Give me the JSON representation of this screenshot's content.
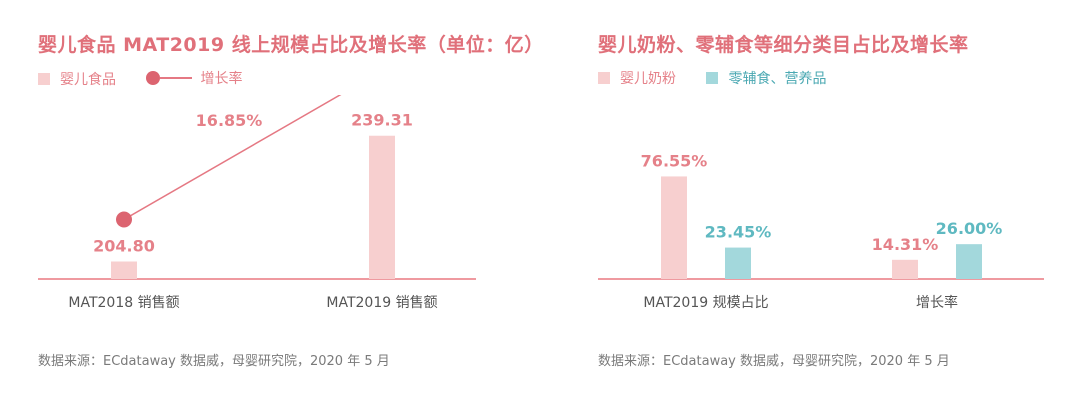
{
  "colors": {
    "title": "#e0707a",
    "pink_bar": "#f7cfcf",
    "teal_bar": "#a3d8dc",
    "pink_label": "#e58189",
    "teal_label": "#5fb9c1",
    "line": "#e57883",
    "dot": "#dc6470",
    "axis": "#ef9aa0",
    "tick": "#555555",
    "source": "#7a7a7a",
    "legend_text_pink": "#e58189",
    "legend_text_teal": "#4aa8b2"
  },
  "left": {
    "title": "婴儿食品 MAT2019 线上规模占比及增长率（单位：亿）",
    "legend": {
      "bar_label": "婴儿食品",
      "line_label": "增长率"
    },
    "source": "数据来源：ECdataway 数据威，母婴研究院，2020 年 5 月"
  },
  "right": {
    "title": "婴儿奶粉、零辅食等细分类目占比及增长率",
    "legend": {
      "series1": "婴儿奶粉",
      "series2": "零辅食、营养品"
    },
    "source": "数据来源：ECdataway 数据威，母婴研究院，2020 年 5 月"
  },
  "chart_data": [
    {
      "type": "bar",
      "title": "婴儿食品 MAT2019 线上规模占比及增长率（单位：亿）",
      "categories": [
        "MAT2018 销售额",
        "MAT2019 销售额"
      ],
      "series": [
        {
          "name": "婴儿食品",
          "values": [
            204.8,
            239.31
          ],
          "labels": [
            "204.80",
            "239.31"
          ]
        }
      ],
      "line_series": {
        "name": "增长率",
        "values": [
          204.8,
          239.31
        ]
      },
      "annotation": "16.85%",
      "ylim": [
        200,
        245
      ],
      "grid": false,
      "legend_position": "top-left"
    },
    {
      "type": "bar",
      "title": "婴儿奶粉、零辅食等细分类目占比及增长率",
      "categories": [
        "MAT2019 规模占比",
        "增长率"
      ],
      "series": [
        {
          "name": "婴儿奶粉",
          "values": [
            76.55,
            14.31
          ],
          "labels": [
            "76.55%",
            "14.31%"
          ]
        },
        {
          "name": "零辅食、营养品",
          "values": [
            23.45,
            26.0
          ],
          "labels": [
            "23.45%",
            "26.00%"
          ]
        }
      ],
      "ylim": [
        0,
        100
      ],
      "grid": false,
      "legend_position": "top-left"
    }
  ]
}
